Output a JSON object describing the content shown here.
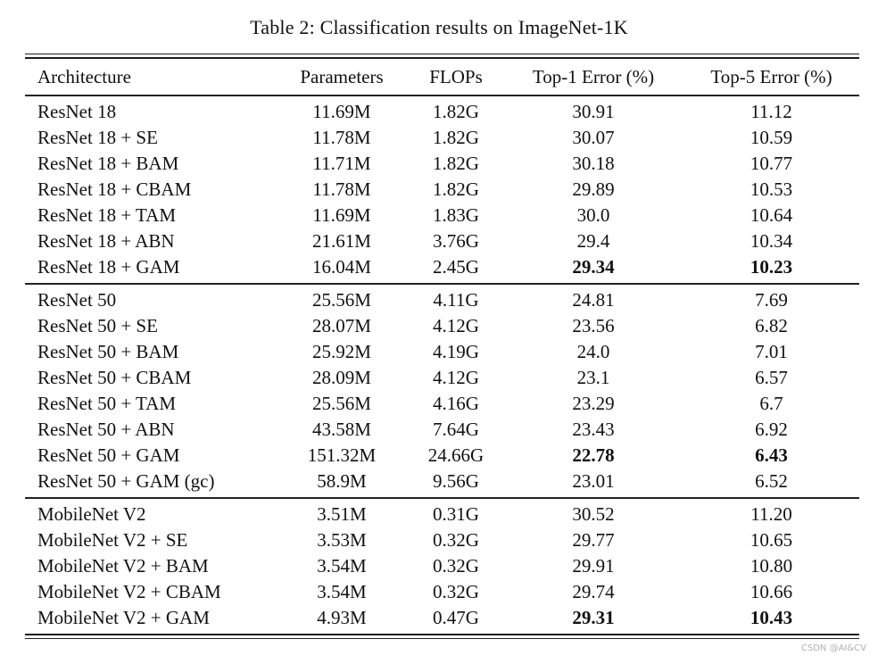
{
  "page": {
    "title": "Table 2: Classification results on ImageNet-1K",
    "watermark": "CSDN @AI&CV"
  },
  "colors": {
    "background": "#ffffff",
    "text": "#111111",
    "rule": "#1b1b1b",
    "watermark": "#b0b0b0"
  },
  "table": {
    "headers": [
      "Architecture",
      "Parameters",
      "FLOPs",
      "Top-1 Error (%)",
      "Top-5 Error (%)"
    ],
    "sections": [
      {
        "name": "ResNet 18 group",
        "rows": [
          {
            "architecture": "ResNet 18",
            "parameters": "11.69M",
            "flops": "1.82G",
            "top1_error": "30.91",
            "top5_error": "11.12",
            "highlight": false
          },
          {
            "architecture": "ResNet 18 + SE",
            "parameters": "11.78M",
            "flops": "1.82G",
            "top1_error": "30.07",
            "top5_error": "10.59",
            "highlight": false
          },
          {
            "architecture": "ResNet 18 + BAM",
            "parameters": "11.71M",
            "flops": "1.82G",
            "top1_error": "30.18",
            "top5_error": "10.77",
            "highlight": false
          },
          {
            "architecture": "ResNet 18 + CBAM",
            "parameters": "11.78M",
            "flops": "1.82G",
            "top1_error": "29.89",
            "top5_error": "10.53",
            "highlight": false
          },
          {
            "architecture": "ResNet 18 + TAM",
            "parameters": "11.69M",
            "flops": "1.83G",
            "top1_error": "30.0",
            "top5_error": "10.64",
            "highlight": false
          },
          {
            "architecture": "ResNet 18 + ABN",
            "parameters": "21.61M",
            "flops": "3.76G",
            "top1_error": "29.4",
            "top5_error": "10.34",
            "highlight": false
          },
          {
            "architecture": "ResNet 18 + GAM",
            "parameters": "16.04M",
            "flops": "2.45G",
            "top1_error": "29.34",
            "top5_error": "10.23",
            "highlight": true
          }
        ]
      },
      {
        "name": "ResNet 50 group",
        "rows": [
          {
            "architecture": "ResNet 50",
            "parameters": "25.56M",
            "flops": "4.11G",
            "top1_error": "24.81",
            "top5_error": "7.69",
            "highlight": false
          },
          {
            "architecture": "ResNet 50 + SE",
            "parameters": "28.07M",
            "flops": "4.12G",
            "top1_error": "23.56",
            "top5_error": "6.82",
            "highlight": false
          },
          {
            "architecture": "ResNet 50 + BAM",
            "parameters": "25.92M",
            "flops": "4.19G",
            "top1_error": "24.0",
            "top5_error": "7.01",
            "highlight": false
          },
          {
            "architecture": "ResNet 50 + CBAM",
            "parameters": "28.09M",
            "flops": "4.12G",
            "top1_error": "23.1",
            "top5_error": "6.57",
            "highlight": false
          },
          {
            "architecture": "ResNet 50 + TAM",
            "parameters": "25.56M",
            "flops": "4.16G",
            "top1_error": "23.29",
            "top5_error": "6.7",
            "highlight": false
          },
          {
            "architecture": "ResNet 50 + ABN",
            "parameters": "43.58M",
            "flops": "7.64G",
            "top1_error": "23.43",
            "top5_error": "6.92",
            "highlight": false
          },
          {
            "architecture": "ResNet 50 + GAM",
            "parameters": "151.32M",
            "flops": "24.66G",
            "top1_error": "22.78",
            "top5_error": "6.43",
            "highlight": true
          },
          {
            "architecture": "ResNet 50 + GAM (gc)",
            "parameters": "58.9M",
            "flops": "9.56G",
            "top1_error": "23.01",
            "top5_error": "6.52",
            "highlight": false
          }
        ]
      },
      {
        "name": "MobileNet V2 group",
        "rows": [
          {
            "architecture": "MobileNet V2",
            "parameters": "3.51M",
            "flops": "0.31G",
            "top1_error": "30.52",
            "top5_error": "11.20",
            "highlight": false
          },
          {
            "architecture": "MobileNet V2 + SE",
            "parameters": "3.53M",
            "flops": "0.32G",
            "top1_error": "29.77",
            "top5_error": "10.65",
            "highlight": false
          },
          {
            "architecture": "MobileNet V2 + BAM",
            "parameters": "3.54M",
            "flops": "0.32G",
            "top1_error": "29.91",
            "top5_error": "10.80",
            "highlight": false
          },
          {
            "architecture": "MobileNet V2 + CBAM",
            "parameters": "3.54M",
            "flops": "0.32G",
            "top1_error": "29.74",
            "top5_error": "10.66",
            "highlight": false
          },
          {
            "architecture": "MobileNet V2 + GAM",
            "parameters": "4.93M",
            "flops": "0.47G",
            "top1_error": "29.31",
            "top5_error": "10.43",
            "highlight": true
          }
        ]
      }
    ]
  }
}
